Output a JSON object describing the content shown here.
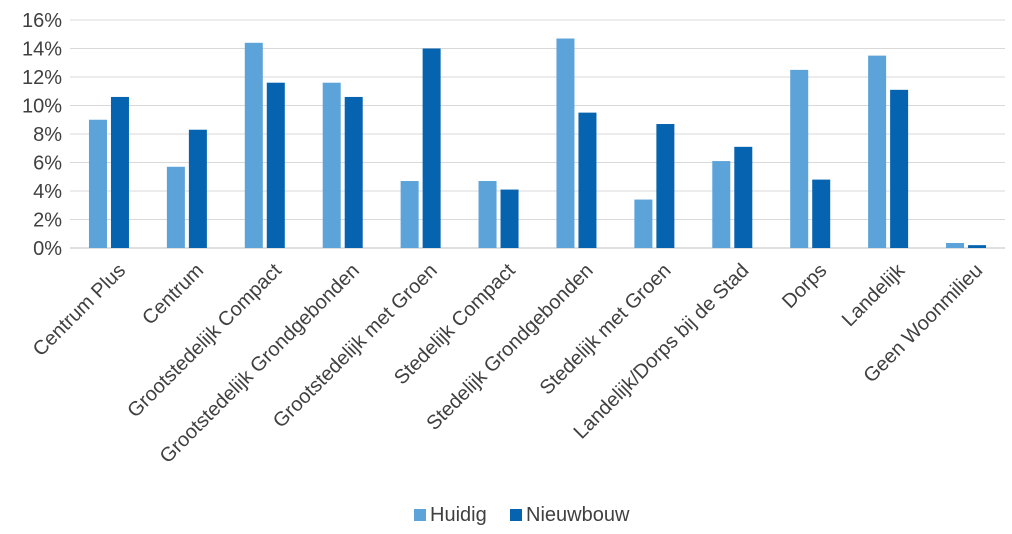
{
  "chart_data": {
    "type": "bar",
    "categories": [
      "Centrum Plus",
      "Centrum",
      "Grootstedelijk Compact",
      "Grootstedelijk Grondgebonden",
      "Grootstedelijk met Groen",
      "Stedelijk Compact",
      "Stedelijk Grondgebonden",
      "Stedelijk met Groen",
      "Landelijk/Dorps bij de Stad",
      "Dorps",
      "Landelijk",
      "Geen Woonmilieu"
    ],
    "series": [
      {
        "name": "Huidig",
        "color": "#5BA3D9",
        "values": [
          9.0,
          5.7,
          14.4,
          11.6,
          4.7,
          4.7,
          14.7,
          3.4,
          6.1,
          12.5,
          13.5,
          0.35
        ]
      },
      {
        "name": "Nieuwbouw",
        "color": "#0563B0",
        "values": [
          10.6,
          8.3,
          11.6,
          10.6,
          14.0,
          4.1,
          9.5,
          8.7,
          7.1,
          4.8,
          11.1,
          0.2
        ]
      }
    ],
    "ylim": [
      0,
      16
    ],
    "yticks": [
      "0%",
      "2%",
      "4%",
      "6%",
      "8%",
      "10%",
      "12%",
      "14%",
      "16%"
    ],
    "ytick_values": [
      0,
      2,
      4,
      6,
      8,
      10,
      12,
      14,
      16
    ],
    "grid": true,
    "legend_position": "bottom"
  }
}
